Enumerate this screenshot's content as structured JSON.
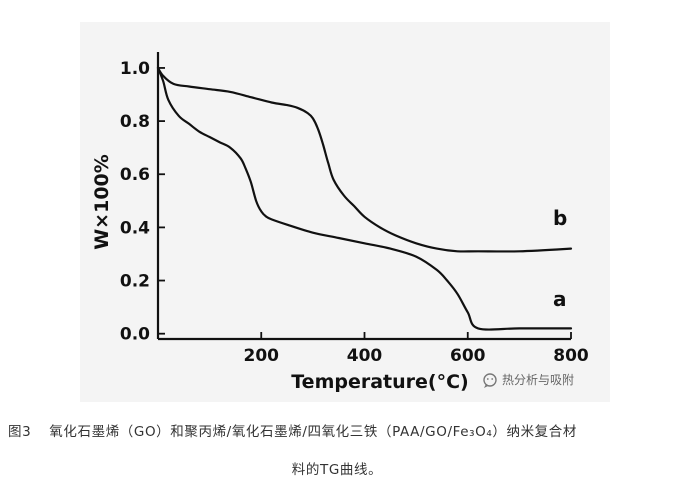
{
  "chart_data": {
    "type": "line",
    "xlabel": "Temperature(°C)",
    "ylabel": "W×100%",
    "xlim": [
      0,
      800
    ],
    "ylim": [
      -0.02,
      1.06
    ],
    "x_ticks": [
      "200",
      "400",
      "600",
      "800"
    ],
    "x_tick_values": [
      200,
      400,
      600,
      800
    ],
    "y_ticks": [
      "0.0",
      "0.2",
      "0.4",
      "0.6",
      "0.8",
      "1.0"
    ],
    "y_tick_values": [
      0.0,
      0.2,
      0.4,
      0.6,
      0.8,
      1.0
    ],
    "series": [
      {
        "name": "a",
        "x": [
          0,
          10,
          20,
          40,
          60,
          80,
          100,
          120,
          140,
          160,
          170,
          180,
          190,
          200,
          210,
          220,
          250,
          300,
          350,
          400,
          450,
          500,
          540,
          560,
          580,
          600,
          620,
          700,
          800
        ],
        "y": [
          1.0,
          0.95,
          0.88,
          0.82,
          0.79,
          0.76,
          0.74,
          0.72,
          0.7,
          0.66,
          0.62,
          0.57,
          0.5,
          0.46,
          0.44,
          0.43,
          0.41,
          0.38,
          0.36,
          0.34,
          0.32,
          0.29,
          0.24,
          0.2,
          0.15,
          0.08,
          0.02,
          0.02,
          0.02
        ]
      },
      {
        "name": "b",
        "x": [
          0,
          10,
          30,
          60,
          100,
          140,
          180,
          220,
          250,
          270,
          290,
          300,
          310,
          320,
          330,
          340,
          360,
          380,
          400,
          430,
          460,
          500,
          540,
          580,
          620,
          700,
          800
        ],
        "y": [
          1.0,
          0.97,
          0.94,
          0.93,
          0.92,
          0.91,
          0.89,
          0.87,
          0.86,
          0.85,
          0.83,
          0.81,
          0.77,
          0.71,
          0.64,
          0.58,
          0.52,
          0.48,
          0.44,
          0.4,
          0.37,
          0.34,
          0.32,
          0.31,
          0.31,
          0.31,
          0.32
        ]
      }
    ]
  },
  "watermark": "热分析与吸附",
  "caption": {
    "figure_label": "图3",
    "line1": "氧化石墨烯（GO）和聚丙烯/氧化石墨烯/四氧化三铁（PAA/GO/Fe₃O₄）纳米复合材",
    "line2": "料的TG曲线。"
  }
}
